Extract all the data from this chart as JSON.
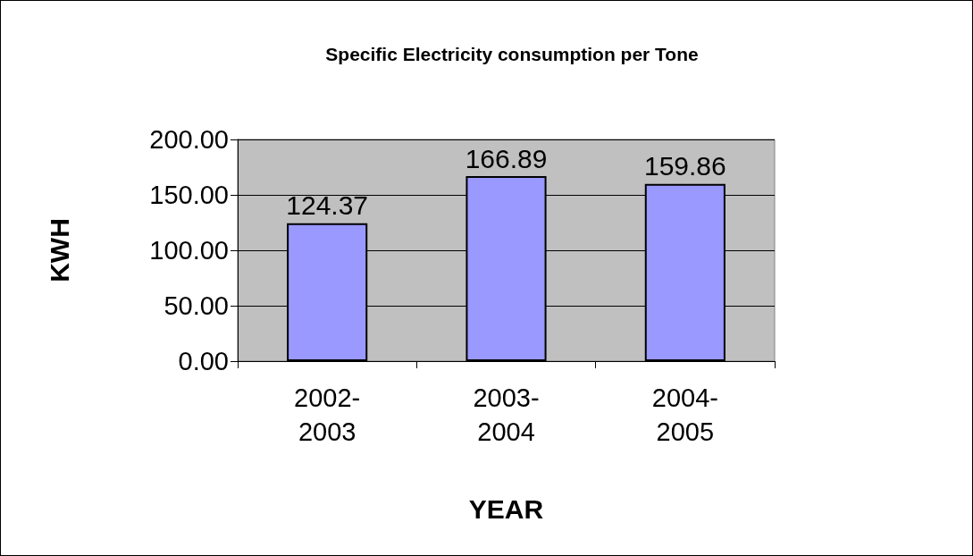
{
  "chart_data": {
    "type": "bar",
    "title": "Specific Electricity consumption per Tone",
    "xlabel": "YEAR",
    "ylabel": "KWH",
    "categories": [
      "2002-2003",
      "2003-2004",
      "2004-2005"
    ],
    "values": [
      124.37,
      166.89,
      159.86
    ],
    "color": "#9999ff",
    "ylim": [
      0,
      200
    ],
    "yticks": [
      {
        "value": 0,
        "label": "0.00"
      },
      {
        "value": 50,
        "label": "50.00"
      },
      {
        "value": 100,
        "label": "100.00"
      },
      {
        "value": 150,
        "label": "150.00"
      },
      {
        "value": 200,
        "label": "200.00"
      }
    ],
    "grid": true,
    "data_labels": true
  }
}
